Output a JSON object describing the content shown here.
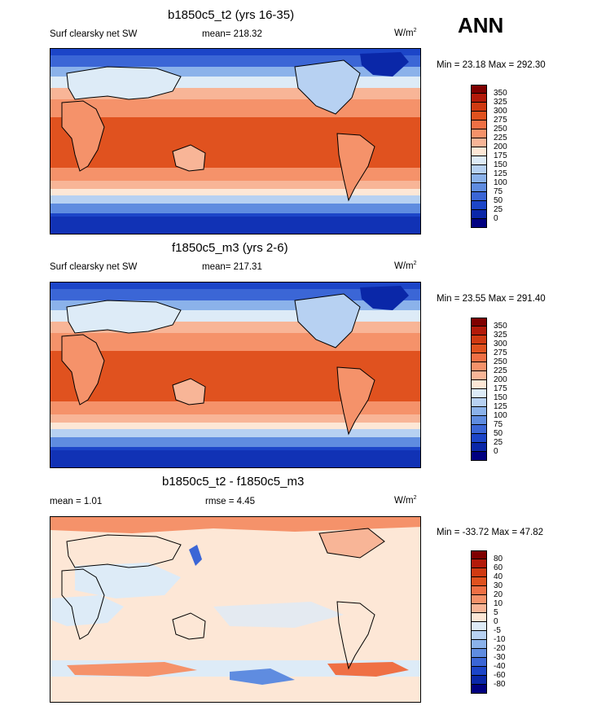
{
  "season": "ANN",
  "panels": [
    {
      "title": "b1850c5_t2 (yrs 16-35)",
      "left_label": "Surf clearsky net SW",
      "center_label": "mean= 218.32",
      "units_base": "W/m",
      "units_sup": "2",
      "minmax": "Min =  23.18 Max = 292.30",
      "colorbar": {
        "labels": [
          "350",
          "325",
          "300",
          "275",
          "250",
          "225",
          "200",
          "175",
          "150",
          "125",
          "100",
          "75",
          "50",
          "25",
          "0"
        ],
        "colors": [
          "#7f0000",
          "#b31a0a",
          "#d03a12",
          "#e0521f",
          "#ef7045",
          "#f5926a",
          "#f8b597",
          "#fde7d6",
          "#ddebf7",
          "#b7d1f2",
          "#8bb2ea",
          "#5f8ce0",
          "#3b66d6",
          "#1c45c8",
          "#0a27a8",
          "#000080"
        ]
      }
    },
    {
      "title": "f1850c5_m3 (yrs 2-6)",
      "left_label": "Surf clearsky net SW",
      "center_label": "mean= 217.31",
      "units_base": "W/m",
      "units_sup": "2",
      "minmax": "Min =  23.55 Max = 291.40",
      "colorbar": {
        "labels": [
          "350",
          "325",
          "300",
          "275",
          "250",
          "225",
          "200",
          "175",
          "150",
          "125",
          "100",
          "75",
          "50",
          "25",
          "0"
        ],
        "colors": [
          "#7f0000",
          "#b31a0a",
          "#d03a12",
          "#e0521f",
          "#ef7045",
          "#f5926a",
          "#f8b597",
          "#fde7d6",
          "#ddebf7",
          "#b7d1f2",
          "#8bb2ea",
          "#5f8ce0",
          "#3b66d6",
          "#1c45c8",
          "#0a27a8",
          "#000080"
        ]
      }
    },
    {
      "title": "b1850c5_t2 - f1850c5_m3",
      "left_label": "mean =   1.01",
      "center_label": "rmse =   4.45",
      "units_base": "W/m",
      "units_sup": "2",
      "minmax": "Min = -33.72 Max =  47.82",
      "colorbar": {
        "labels": [
          "80",
          "60",
          "40",
          "30",
          "20",
          "10",
          "5",
          "0",
          "-5",
          "-10",
          "-20",
          "-30",
          "-40",
          "-60",
          "-80"
        ],
        "colors": [
          "#7f0000",
          "#b31a0a",
          "#d03a12",
          "#e0521f",
          "#ef7045",
          "#f5926a",
          "#f8b597",
          "#fde7d6",
          "#ddebf7",
          "#b7d1f2",
          "#8bb2ea",
          "#5f8ce0",
          "#3b66d6",
          "#1c45c8",
          "#0a27a8",
          "#000080"
        ]
      }
    }
  ]
}
